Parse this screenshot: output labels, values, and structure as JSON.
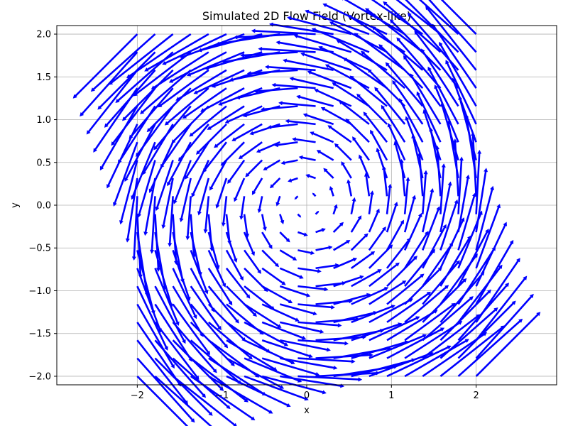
{
  "chart_data": {
    "type": "quiver",
    "title": "Simulated 2D Flow Field (Vortex-like)",
    "xlabel": "x",
    "ylabel": "y",
    "xlim": [
      -2.95,
      2.95
    ],
    "ylim": [
      -2.1,
      2.1
    ],
    "xticks": [
      -2,
      -1,
      0,
      1,
      2
    ],
    "xtick_labels": [
      "−2",
      "−1",
      "0",
      "1",
      "2"
    ],
    "yticks": [
      -2.0,
      -1.5,
      -1.0,
      -0.5,
      0.0,
      0.5,
      1.0,
      1.5,
      2.0
    ],
    "ytick_labels": [
      "−2.0",
      "−1.5",
      "−1.0",
      "−0.5",
      "0.0",
      "0.5",
      "1.0",
      "1.5",
      "2.0"
    ],
    "grid": true,
    "arrow_color": "#0000ff",
    "field": {
      "x_range": [
        -2,
        2
      ],
      "y_range": [
        -2,
        2
      ],
      "points_per_axis": 20,
      "u": "-y",
      "v": "x"
    }
  }
}
